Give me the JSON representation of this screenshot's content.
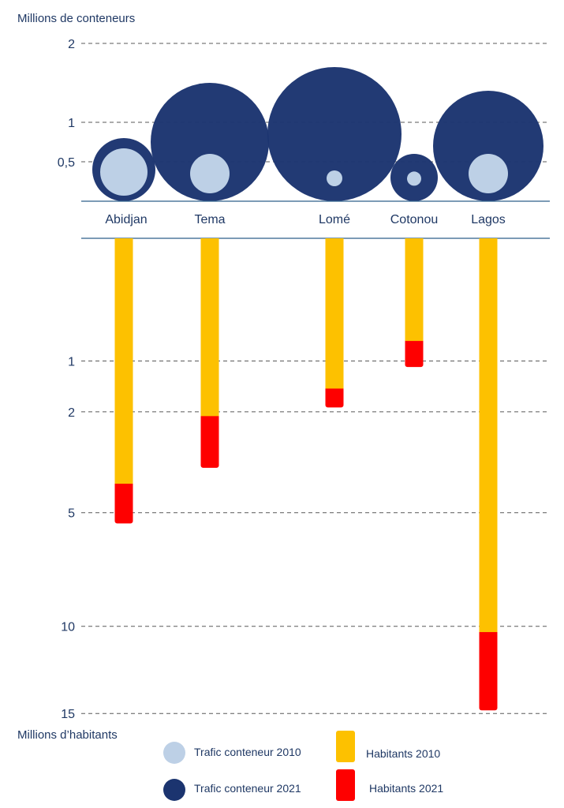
{
  "chart_data": [
    {
      "type": "bubble",
      "ylabel": "Millions de conteneurs",
      "yticks": [
        {
          "value": 0.5,
          "label": "0,5"
        },
        {
          "value": 1,
          "label": "1"
        },
        {
          "value": 2,
          "label": "2"
        }
      ],
      "grid": true,
      "categories": [
        "Abidjan",
        "Tema",
        "Lomé",
        "Cotonou",
        "Lagos"
      ],
      "series": [
        {
          "name": "Trafic conteneur 2021",
          "values": [
            0.8,
            1.5,
            1.7,
            0.6,
            1.4
          ],
          "color": "#1b346f"
        },
        {
          "name": "Trafic conteneur 2010",
          "values": [
            0.6,
            0.5,
            0.2,
            0.18,
            0.5
          ],
          "color": "#bdd0e6"
        }
      ]
    },
    {
      "type": "bar",
      "ylabel": "Millions d’habitants",
      "yticks": [
        {
          "value": 1,
          "label": "1"
        },
        {
          "value": 2,
          "label": "2"
        },
        {
          "value": 5,
          "label": "5"
        },
        {
          "value": 10,
          "label": "10"
        },
        {
          "value": 15,
          "label": "15"
        }
      ],
      "grid": true,
      "categories": [
        "Abidjan",
        "Tema",
        "Lomé",
        "Cotonou",
        "Lagos"
      ],
      "series": [
        {
          "name": "Habitants 2010",
          "values": [
            4,
            2.1,
            1.5,
            0.7,
            10.3
          ],
          "color": "#fdc100"
        },
        {
          "name": "Habitants 2021",
          "values": [
            5.4,
            3.5,
            1.9,
            1.1,
            14.8
          ],
          "color": "#fe0000"
        }
      ]
    }
  ],
  "legend": {
    "position": "bottom",
    "items": [
      {
        "label": "Trafic conteneur 2010",
        "shape": "circle",
        "color": "#bdd0e6"
      },
      {
        "label": "Habitants 2010",
        "shape": "square",
        "color": "#fdc100"
      },
      {
        "label": "Trafic conteneur 2021",
        "shape": "circle",
        "color": "#1b346f"
      },
      {
        "label": "Habitants 2021",
        "shape": "square",
        "color": "#fe0000"
      }
    ]
  },
  "colors": {
    "text": "#1f3864",
    "grid": "#595959",
    "axis": "#2e5f8a"
  }
}
